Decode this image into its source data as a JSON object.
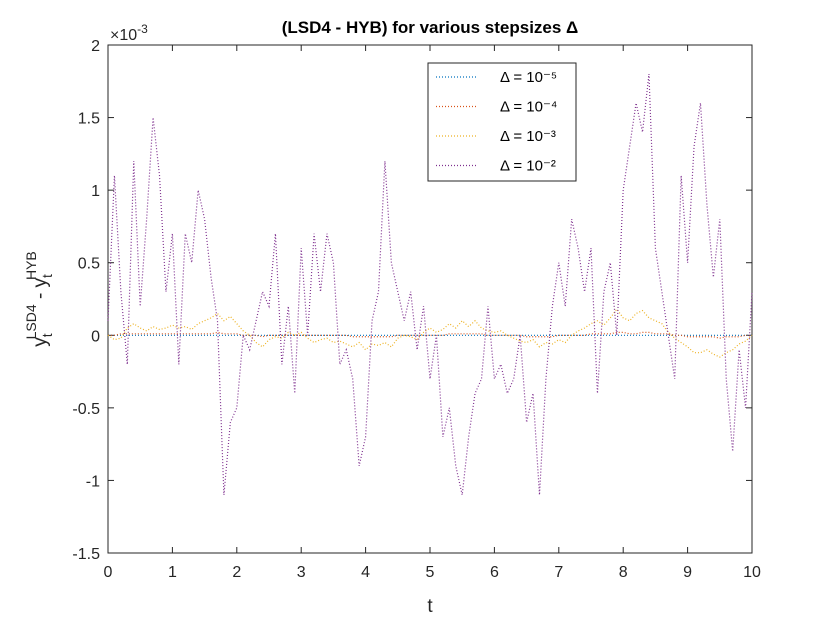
{
  "chart_data": {
    "type": "line",
    "title": "(LSD4 - HYB) for various stepsizes Δ",
    "xlabel": "t",
    "ylabel": {
      "parts": [
        "y",
        "t",
        "LSD4",
        " - y",
        "t",
        "HYB"
      ]
    },
    "y_multiplier": {
      "base": "×10",
      "exponent": "-3"
    },
    "xlim": [
      0,
      10
    ],
    "xticks": [
      0,
      1,
      2,
      3,
      4,
      5,
      6,
      7,
      8,
      9,
      10
    ],
    "ylim": [
      -1.5,
      2
    ],
    "yticks": [
      -1.5,
      -1,
      -0.5,
      0,
      0.5,
      1,
      1.5,
      2
    ],
    "legend": "top-right-inner",
    "grid": false,
    "x": [
      0,
      0.1,
      0.2,
      0.3,
      0.4,
      0.5,
      0.6,
      0.7,
      0.8,
      0.9,
      1,
      1.1,
      1.2,
      1.3,
      1.4,
      1.5,
      1.6,
      1.7,
      1.8,
      1.9,
      2,
      2.1,
      2.2,
      2.3,
      2.4,
      2.5,
      2.6,
      2.7,
      2.8,
      2.9,
      3,
      3.1,
      3.2,
      3.3,
      3.4,
      3.5,
      3.6,
      3.7,
      3.8,
      3.9,
      4,
      4.1,
      4.2,
      4.3,
      4.4,
      4.5,
      4.6,
      4.7,
      4.8,
      4.9,
      5,
      5.1,
      5.2,
      5.3,
      5.4,
      5.5,
      5.6,
      5.7,
      5.8,
      5.9,
      6,
      6.1,
      6.2,
      6.3,
      6.4,
      6.5,
      6.6,
      6.7,
      6.8,
      6.9,
      7,
      7.1,
      7.2,
      7.3,
      7.4,
      7.5,
      7.6,
      7.7,
      7.8,
      7.9,
      8,
      8.1,
      8.2,
      8.3,
      8.4,
      8.5,
      8.6,
      8.7,
      8.8,
      8.9,
      9,
      9.1,
      9.2,
      9.3,
      9.4,
      9.5,
      9.6,
      9.7,
      9.8,
      9.9,
      10
    ],
    "series": [
      {
        "name": "Δ = 10⁻⁵",
        "color": "#0072BD",
        "values": [
          0,
          0,
          0,
          0,
          0,
          0,
          0,
          0,
          0,
          0,
          0,
          0,
          0,
          0,
          0,
          0,
          0,
          0,
          0,
          0,
          0,
          0,
          0,
          0,
          0,
          0,
          0,
          0,
          0,
          0,
          0,
          0,
          0,
          0,
          0,
          0,
          0,
          0,
          0,
          0,
          0,
          0,
          0,
          0,
          0,
          0,
          0,
          0,
          0,
          0,
          0,
          0,
          0,
          0,
          0,
          0,
          0,
          0,
          0,
          0,
          0,
          0,
          0,
          0,
          0,
          0,
          0,
          0,
          0,
          0,
          0,
          0,
          0,
          0,
          0,
          0,
          0,
          0,
          0,
          0,
          0,
          0,
          0,
          0,
          0,
          0,
          0,
          0,
          0,
          0,
          0,
          0,
          0,
          0,
          0,
          0,
          0,
          0,
          0,
          0,
          0
        ]
      },
      {
        "name": "Δ = 10⁻⁴",
        "color": "#D95319",
        "values": [
          0,
          0,
          0.01,
          0.01,
          0.01,
          0.01,
          0.01,
          0.01,
          0.01,
          0.01,
          0.01,
          0.01,
          0.01,
          0.01,
          0.01,
          0.01,
          0.01,
          0.02,
          0.01,
          0.01,
          0.01,
          0,
          0,
          0,
          -0.01,
          0,
          0,
          0,
          0,
          0,
          0,
          0,
          0,
          0,
          0,
          0,
          0,
          0,
          -0.01,
          -0.01,
          -0.01,
          -0.01,
          -0.01,
          -0.01,
          -0.01,
          0,
          0,
          0,
          0,
          0,
          0,
          0,
          0,
          0.01,
          0.01,
          0.01,
          0.01,
          0.01,
          0.01,
          0,
          0,
          0,
          0,
          0,
          0,
          -0.01,
          -0.01,
          -0.01,
          -0.01,
          -0.01,
          0,
          0,
          0,
          0,
          0,
          0.01,
          0.01,
          0.01,
          0.01,
          0.02,
          0.02,
          0.01,
          0.01,
          0.02,
          0.02,
          0.01,
          0.01,
          0.01,
          0,
          0,
          -0.01,
          -0.01,
          -0.01,
          -0.01,
          -0.01,
          -0.02,
          -0.01,
          -0.01,
          -0.01,
          0,
          0
        ]
      },
      {
        "name": "Δ = 10⁻³",
        "color": "#EDB120",
        "values": [
          0,
          -0.03,
          -0.02,
          0.05,
          0.08,
          0.05,
          0.03,
          0.06,
          0.04,
          0.05,
          0.07,
          0.05,
          0.06,
          0.04,
          0.08,
          0.1,
          0.12,
          0.15,
          0.1,
          0.13,
          0.08,
          0.03,
          0,
          -0.05,
          -0.08,
          -0.03,
          -0.01,
          -0.02,
          0.02,
          0,
          0.02,
          -0.02,
          -0.05,
          -0.03,
          -0.02,
          -0.05,
          -0.04,
          -0.06,
          -0.08,
          -0.05,
          -0.1,
          -0.06,
          -0.07,
          -0.05,
          -0.08,
          -0.02,
          0,
          -0.01,
          -0.03,
          0.02,
          0.05,
          0.02,
          0.04,
          0.08,
          0.05,
          0.1,
          0.06,
          0.1,
          0.05,
          0.03,
          0.02,
          0.03,
          0,
          -0.02,
          -0.04,
          -0.05,
          -0.03,
          -0.08,
          -0.05,
          -0.06,
          -0.03,
          -0.05,
          0,
          0.03,
          0.05,
          0.08,
          0.1,
          0.07,
          0.12,
          0.18,
          0.12,
          0.1,
          0.15,
          0.17,
          0.12,
          0.1,
          0.08,
          0.02,
          -0.02,
          -0.05,
          -0.08,
          -0.12,
          -0.12,
          -0.1,
          -0.13,
          -0.15,
          -0.12,
          -0.1,
          -0.06,
          -0.04,
          0
        ]
      },
      {
        "name": "Δ = 10⁻²",
        "color": "#7E2F8E",
        "values": [
          0.1,
          1.1,
          0.3,
          -0.2,
          1.2,
          0.2,
          0.8,
          1.5,
          1.1,
          0.3,
          0.7,
          -0.2,
          0.7,
          0.5,
          1,
          0.8,
          0.4,
          0.1,
          -1.1,
          -0.6,
          -0.5,
          0,
          -0.1,
          0.1,
          0.3,
          0.2,
          0.7,
          -0.2,
          0.2,
          -0.4,
          0.6,
          0,
          0.7,
          0.3,
          0.7,
          0.5,
          -0.2,
          -0.1,
          -0.3,
          -0.9,
          -0.7,
          0.1,
          0.3,
          1.2,
          0.5,
          0.3,
          0.1,
          0.3,
          -0.1,
          0.2,
          -0.3,
          0,
          -0.7,
          -0.5,
          -0.9,
          -1.1,
          -0.7,
          -0.4,
          -0.3,
          0.2,
          -0.3,
          -0.2,
          -0.4,
          -0.3,
          0,
          -0.6,
          -0.4,
          -1.1,
          -0.3,
          0.2,
          0.5,
          0.2,
          0.8,
          0.6,
          0.3,
          0.6,
          -0.4,
          0.3,
          0.5,
          0,
          1,
          1.3,
          1.6,
          1.4,
          1.8,
          0.6,
          0.3,
          0,
          -0.3,
          1.1,
          0.5,
          1.3,
          1.6,
          0.9,
          0.4,
          0.8,
          -0.3,
          -0.8,
          -0.1,
          -0.5,
          0.3
        ]
      }
    ]
  }
}
